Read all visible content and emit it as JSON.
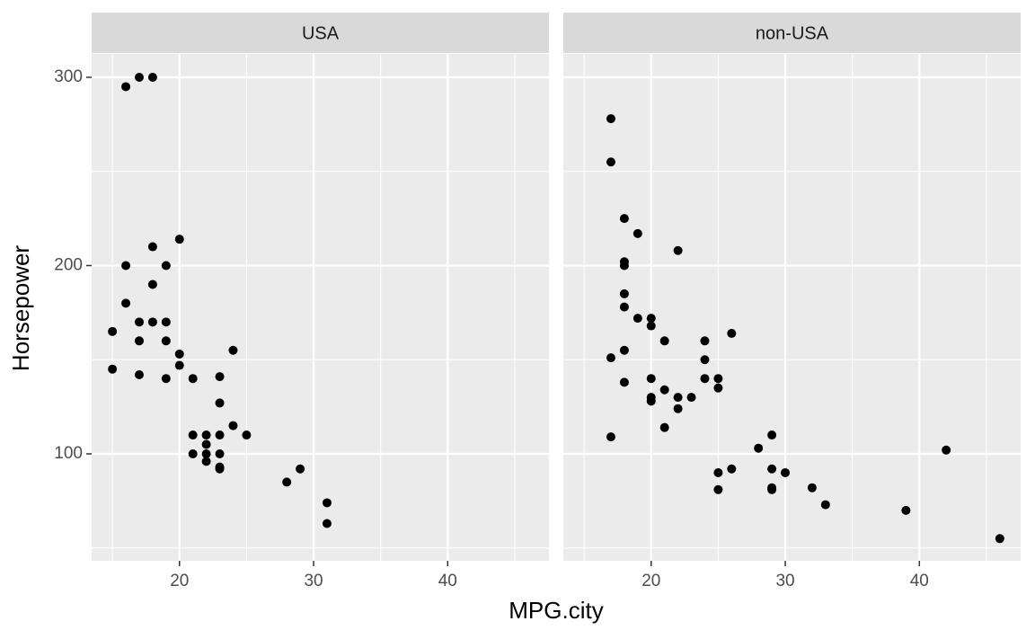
{
  "chart_data": {
    "type": "scatter",
    "xlabel": "MPG.city",
    "ylabel": "Horsepower",
    "color": "#000000",
    "xlim": [
      13.45,
      47.55
    ],
    "ylim": [
      43.2,
      312.4
    ],
    "xticks": [
      20,
      30,
      40
    ],
    "yticks": [
      100,
      200,
      300
    ],
    "minor_xticks": [
      15,
      25,
      35,
      45
    ],
    "minor_yticks": [
      50,
      150,
      250
    ],
    "grid": true,
    "facets": [
      {
        "title": "USA",
        "x": [
          16,
          17,
          18,
          20,
          18,
          16,
          19,
          18,
          16,
          17,
          18,
          19,
          15,
          17,
          19,
          24,
          20,
          20,
          15,
          17,
          19,
          21,
          23,
          23,
          24,
          21,
          22,
          23,
          25,
          22,
          21,
          22,
          23,
          22,
          23,
          23,
          29,
          28,
          31,
          31
        ],
        "y": [
          295,
          300,
          300,
          214,
          210,
          200,
          200,
          190,
          180,
          170,
          170,
          170,
          165,
          160,
          160,
          155,
          153,
          147,
          145,
          142,
          140,
          140,
          141,
          127,
          115,
          110,
          110,
          110,
          110,
          105,
          100,
          100,
          100,
          96,
          93,
          92,
          92,
          85,
          74,
          63
        ]
      },
      {
        "title": "non-USA",
        "x": [
          17,
          17,
          18,
          19,
          22,
          18,
          18,
          18,
          18,
          19,
          20,
          20,
          26,
          21,
          24,
          18,
          17,
          24,
          18,
          20,
          24,
          25,
          25,
          21,
          20,
          22,
          23,
          20,
          22,
          21,
          17,
          29,
          28,
          42,
          26,
          29,
          30,
          25,
          32,
          29,
          29,
          25,
          33,
          39,
          46
        ],
        "y": [
          278,
          255,
          225,
          217,
          208,
          202,
          200,
          185,
          178,
          172,
          172,
          168,
          164,
          160,
          160,
          155,
          151,
          150,
          138,
          140,
          140,
          140,
          135,
          134,
          130,
          130,
          130,
          128,
          124,
          114,
          109,
          110,
          103,
          102,
          92,
          92,
          90,
          90,
          82,
          82,
          81,
          81,
          73,
          70,
          55
        ]
      }
    ]
  }
}
